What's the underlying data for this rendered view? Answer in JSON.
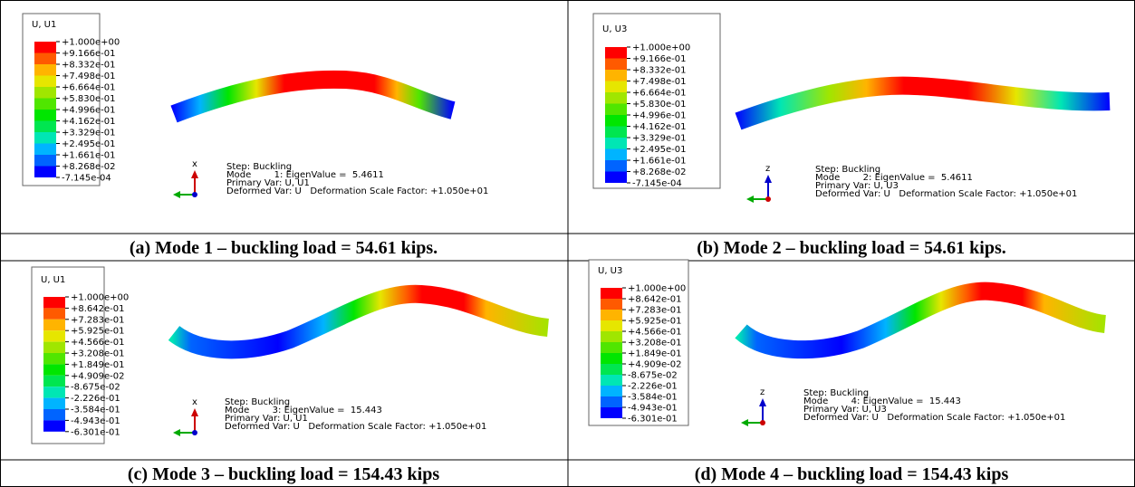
{
  "panels": [
    {
      "legend_title": "U, U1",
      "legend_labels": [
        "+1.000e+00",
        "+9.166e-01",
        "+8.332e-01",
        "+7.498e-01",
        "+6.664e-01",
        "+5.830e-01",
        "+4.996e-01",
        "+4.162e-01",
        "+3.329e-01",
        "+2.495e-01",
        "+1.661e-01",
        "+8.268e-02",
        "-7.145e-04"
      ],
      "step": "Step: Buckling",
      "mode": "Mode        1: EigenValue =  5.4611",
      "primary": "Primary Var: U, U1",
      "deformed": "Deformed Var: U   Deformation Scale Factor: +1.050e+01",
      "axis": "x",
      "caption": "(a) Mode 1 – buckling load = 54.61 kips."
    },
    {
      "legend_title": "U, U3",
      "legend_labels": [
        "+1.000e+00",
        "+9.166e-01",
        "+8.332e-01",
        "+7.498e-01",
        "+6.664e-01",
        "+5.830e-01",
        "+4.996e-01",
        "+4.162e-01",
        "+3.329e-01",
        "+2.495e-01",
        "+1.661e-01",
        "+8.268e-02",
        "-7.145e-04"
      ],
      "step": "Step: Buckling",
      "mode": "Mode        2: EigenValue =  5.4611",
      "primary": "Primary Var: U, U3",
      "deformed": "Deformed Var: U   Deformation Scale Factor: +1.050e+01",
      "axis": "z",
      "caption": "(b) Mode 2 – buckling load = 54.61 kips."
    },
    {
      "legend_title": "U, U1",
      "legend_labels": [
        "+1.000e+00",
        "+8.642e-01",
        "+7.283e-01",
        "+5.925e-01",
        "+4.566e-01",
        "+3.208e-01",
        "+1.849e-01",
        "+4.909e-02",
        "-8.675e-02",
        "-2.226e-01",
        "-3.584e-01",
        "-4.943e-01",
        "-6.301e-01"
      ],
      "step": "Step: Buckling",
      "mode": "Mode        3: EigenValue =  15.443",
      "primary": "Primary Var: U, U1",
      "deformed": "Deformed Var: U   Deformation Scale Factor: +1.050e+01",
      "axis": "x",
      "caption": "(c) Mode 3 – buckling load = 154.43 kips"
    },
    {
      "legend_title": "U, U3",
      "legend_labels": [
        "+1.000e+00",
        "+8.642e-01",
        "+7.283e-01",
        "+5.925e-01",
        "+4.566e-01",
        "+3.208e-01",
        "+1.849e-01",
        "+4.909e-02",
        "-8.675e-02",
        "-2.226e-01",
        "-3.584e-01",
        "-4.943e-01",
        "-6.301e-01"
      ],
      "step": "Step: Buckling",
      "mode": "Mode        4: EigenValue =  15.443",
      "primary": "Primary Var: U, U3",
      "deformed": "Deformed Var: U   Deformation Scale Factor: +1.050e+01",
      "axis": "z",
      "caption": "(d) Mode 4 – buckling load = 154.43 kips"
    }
  ]
}
